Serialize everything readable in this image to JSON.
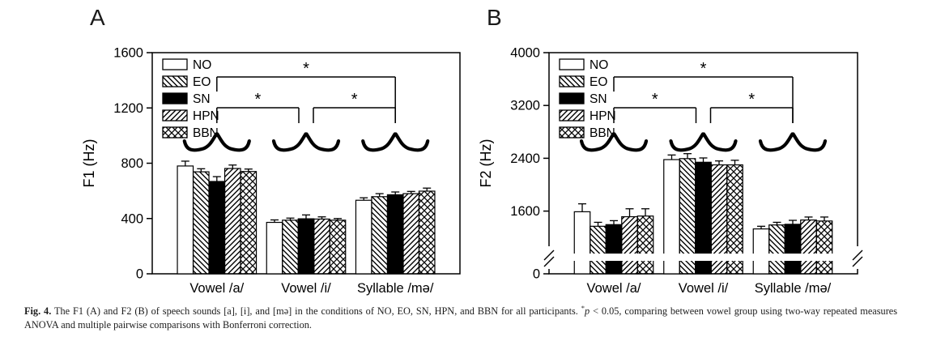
{
  "colors": {
    "ink": "#000000",
    "background": "#ffffff"
  },
  "caption": {
    "label": "Fig. 4.",
    "text_before_star": "The F1 (A) and F2 (B) of speech sounds [a], [i], and [mə] in the conditions of NO, EO, SN, HPN, and BBN for all participants.",
    "star": "*",
    "p_symbol": "p",
    "text_after_p": "< 0.05, comparing between vowel group using two-way repeated measures ANOVA and multiple pairwise comparisons with Bonferroni correction."
  },
  "chart_data": [
    {
      "panel_label": "A",
      "type": "bar",
      "ylabel": "F1 (Hz)",
      "ylim": [
        0,
        1600
      ],
      "yticks": [
        0,
        400,
        800,
        1200,
        1600
      ],
      "grid": false,
      "legend_position": "top-left-inside",
      "axis_break": null,
      "categories": [
        "Vowel /a/",
        "Vowel /i/",
        "Syllable /mə/"
      ],
      "series": [
        {
          "name": "NO",
          "pattern": "empty",
          "values": [
            780,
            372,
            532
          ],
          "errors": [
            35,
            18,
            18
          ]
        },
        {
          "name": "EO",
          "pattern": "diag_back",
          "values": [
            738,
            388,
            558
          ],
          "errors": [
            22,
            15,
            22
          ]
        },
        {
          "name": "SN",
          "pattern": "solid",
          "values": [
            668,
            398,
            572
          ],
          "errors": [
            35,
            28,
            20
          ]
        },
        {
          "name": "HPN",
          "pattern": "diag_fwd",
          "values": [
            762,
            396,
            580
          ],
          "errors": [
            25,
            16,
            16
          ]
        },
        {
          "name": "BBN",
          "pattern": "cross",
          "values": [
            740,
            388,
            598
          ],
          "errors": [
            18,
            12,
            22
          ]
        }
      ],
      "significance": [
        {
          "pair": [
            0,
            2
          ],
          "level": "top",
          "label": "*"
        },
        {
          "pair": [
            0,
            1
          ],
          "level": "mid",
          "label": "*"
        },
        {
          "pair": [
            1,
            2
          ],
          "level": "mid",
          "label": "*"
        }
      ],
      "group_braces": true
    },
    {
      "panel_label": "B",
      "type": "bar",
      "ylabel": "F2 (Hz)",
      "ylim": [
        0,
        4000
      ],
      "yticks": [
        0,
        1600,
        2400,
        3200,
        4000
      ],
      "grid": false,
      "legend_position": "top-left-inside",
      "axis_break": {
        "between": [
          0,
          1600
        ]
      },
      "categories": [
        "Vowel /a/",
        "Vowel /i/",
        "Syllable /mə/"
      ],
      "series": [
        {
          "name": "NO",
          "pattern": "empty",
          "values": [
            1590,
            2380,
            1330
          ],
          "errors": [
            120,
            70,
            40
          ]
        },
        {
          "name": "EO",
          "pattern": "diag_back",
          "values": [
            1370,
            2395,
            1390
          ],
          "errors": [
            60,
            75,
            40
          ]
        },
        {
          "name": "SN",
          "pattern": "solid",
          "values": [
            1395,
            2340,
            1400
          ],
          "errors": [
            60,
            65,
            60
          ]
        },
        {
          "name": "HPN",
          "pattern": "diag_fwd",
          "values": [
            1515,
            2300,
            1465
          ],
          "errors": [
            120,
            60,
            45
          ]
        },
        {
          "name": "BBN",
          "pattern": "cross",
          "values": [
            1525,
            2300,
            1450
          ],
          "errors": [
            110,
            70,
            60
          ]
        }
      ],
      "significance": [
        {
          "pair": [
            0,
            2
          ],
          "level": "top",
          "label": "*"
        },
        {
          "pair": [
            0,
            1
          ],
          "level": "mid",
          "label": "*"
        },
        {
          "pair": [
            1,
            2
          ],
          "level": "mid",
          "label": "*"
        }
      ],
      "group_braces": true
    }
  ]
}
